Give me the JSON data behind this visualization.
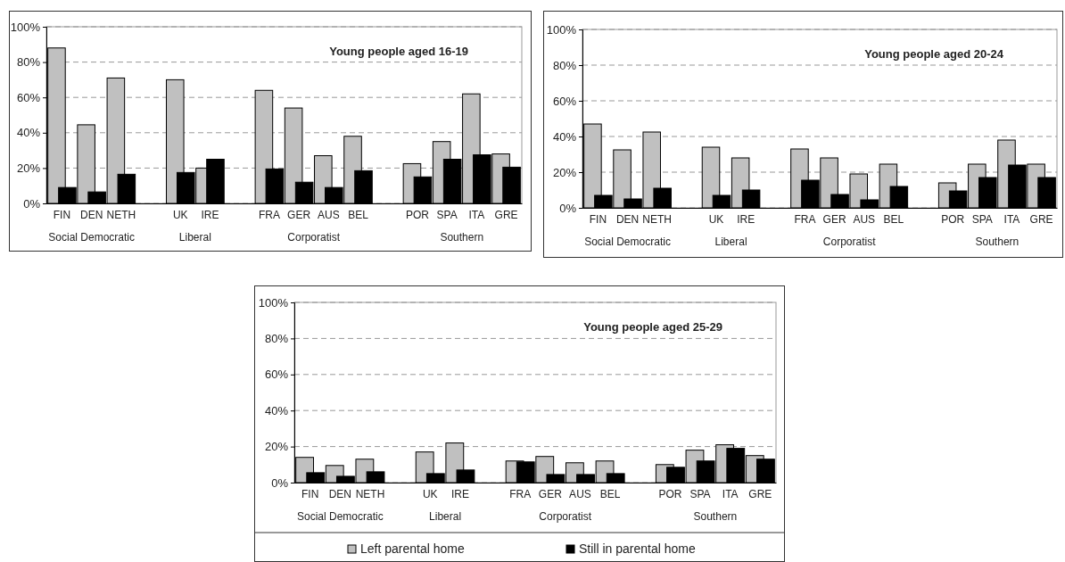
{
  "chart_data": [
    {
      "type": "bar",
      "title": "Young people aged 16-19",
      "categories": [
        "FIN",
        "DEN",
        "NETH",
        null,
        "UK",
        "IRE",
        null,
        "FRA",
        "GER",
        "AUS",
        "BEL",
        null,
        "POR",
        "SPA",
        "ITA",
        "GRE"
      ],
      "series": [
        {
          "color": "#c0c0c0",
          "values": [
            88,
            44.5,
            71,
            null,
            70,
            20,
            null,
            64,
            54,
            27,
            38,
            null,
            22.5,
            35,
            62,
            28
          ]
        },
        {
          "color": "#000000",
          "values": [
            9,
            6.5,
            16.5,
            null,
            17.5,
            25,
            null,
            19.5,
            12,
            9,
            18.5,
            null,
            15,
            25,
            27.5,
            20.5
          ]
        }
      ],
      "ylim": [
        0,
        100
      ],
      "yticks": [
        {
          "value": 0,
          "label": "0%"
        },
        {
          "value": 20,
          "label": "20%"
        },
        {
          "value": 40,
          "label": "40%"
        },
        {
          "value": 60,
          "label": "60%"
        },
        {
          "value": 80,
          "label": "80%"
        },
        {
          "value": 100,
          "label": "100%"
        }
      ],
      "grid": "y",
      "annotations": [
        "Social Democratic",
        "Liberal",
        "Corporatist",
        "Southern"
      ]
    },
    {
      "type": "bar",
      "title": "Young people aged 20-24",
      "categories": [
        "FIN",
        "DEN",
        "NETH",
        null,
        "UK",
        "IRE",
        null,
        "FRA",
        "GER",
        "AUS",
        "BEL",
        null,
        "POR",
        "SPA",
        "ITA",
        "GRE"
      ],
      "series": [
        {
          "color": "#c0c0c0",
          "values": [
            47,
            32.5,
            42.5,
            null,
            34,
            28,
            null,
            33,
            28,
            19,
            24.5,
            null,
            14,
            24.5,
            38,
            24.5
          ]
        },
        {
          "color": "#000000",
          "values": [
            7,
            5,
            11,
            null,
            7,
            10,
            null,
            15.5,
            7.5,
            4.5,
            12,
            null,
            9.5,
            17,
            24,
            17
          ]
        }
      ],
      "ylim": [
        0,
        100
      ],
      "yticks": [
        {
          "value": 0,
          "label": "0%"
        },
        {
          "value": 20,
          "label": "20%"
        },
        {
          "value": 40,
          "label": "40%"
        },
        {
          "value": 60,
          "label": "60%"
        },
        {
          "value": 80,
          "label": "80%"
        },
        {
          "value": 100,
          "label": "100%"
        }
      ],
      "grid": "y",
      "annotations": [
        "Social Democratic",
        "Liberal",
        "Corporatist",
        "Southern"
      ]
    },
    {
      "type": "bar",
      "title": "Young people aged 25-29",
      "categories": [
        "FIN",
        "DEN",
        "NETH",
        null,
        "UK",
        "IRE",
        null,
        "FRA",
        "GER",
        "AUS",
        "BEL",
        null,
        "POR",
        "SPA",
        "ITA",
        "GRE"
      ],
      "series": [
        {
          "name": "Left parental home",
          "color": "#c0c0c0",
          "values": [
            14,
            9.5,
            13,
            null,
            17,
            22,
            null,
            12,
            14.5,
            11,
            12,
            null,
            10,
            18,
            21,
            15
          ]
        },
        {
          "name": "Still in parental home",
          "color": "#000000",
          "values": [
            5.5,
            3.5,
            6,
            null,
            5,
            7,
            null,
            11.5,
            4.5,
            4.5,
            5,
            null,
            8.5,
            12,
            19,
            13
          ]
        }
      ],
      "ylim": [
        0,
        100
      ],
      "yticks": [
        {
          "value": 0,
          "label": "0%"
        },
        {
          "value": 20,
          "label": "20%"
        },
        {
          "value": 40,
          "label": "40%"
        },
        {
          "value": 60,
          "label": "60%"
        },
        {
          "value": 80,
          "label": "80%"
        },
        {
          "value": 100,
          "label": "100%"
        }
      ],
      "grid": "y",
      "legend": "bottom",
      "annotations": [
        "Social Democratic",
        "Liberal",
        "Corporatist",
        "Southern"
      ]
    }
  ]
}
